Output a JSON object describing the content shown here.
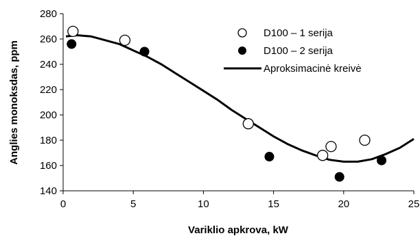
{
  "chart_data": {
    "type": "scatter",
    "title": "",
    "xlabel": "Variklio apkrova, kW",
    "ylabel": "Anglies monoksdas, ppm",
    "xlim": [
      0,
      25
    ],
    "ylim": [
      140,
      280
    ],
    "x_ticks": [
      0,
      5,
      10,
      15,
      20,
      25
    ],
    "y_ticks": [
      140,
      160,
      180,
      200,
      220,
      240,
      260,
      280
    ],
    "grid": false,
    "legend_position": "top-right",
    "series": [
      {
        "name": "D100 – 1 serija",
        "marker": "open-circle",
        "color": "#000000",
        "points": [
          {
            "x": 0.7,
            "y": 266
          },
          {
            "x": 4.4,
            "y": 259
          },
          {
            "x": 13.2,
            "y": 193
          },
          {
            "x": 18.5,
            "y": 168
          },
          {
            "x": 19.1,
            "y": 175
          },
          {
            "x": 21.5,
            "y": 180
          }
        ]
      },
      {
        "name": "D100 – 2 serija",
        "marker": "filled-circle",
        "color": "#000000",
        "points": [
          {
            "x": 0.6,
            "y": 256
          },
          {
            "x": 5.8,
            "y": 250
          },
          {
            "x": 14.7,
            "y": 167
          },
          {
            "x": 19.7,
            "y": 151
          },
          {
            "x": 22.7,
            "y": 164
          }
        ]
      },
      {
        "name": "Aproksimacinė kreivė",
        "marker": "line",
        "color": "#000000",
        "points": [
          {
            "x": 0.2,
            "y": 262
          },
          {
            "x": 1,
            "y": 263
          },
          {
            "x": 2,
            "y": 262
          },
          {
            "x": 3,
            "y": 259
          },
          {
            "x": 4,
            "y": 256
          },
          {
            "x": 5,
            "y": 251
          },
          {
            "x": 6,
            "y": 246
          },
          {
            "x": 7,
            "y": 240
          },
          {
            "x": 8,
            "y": 233
          },
          {
            "x": 9,
            "y": 226
          },
          {
            "x": 10,
            "y": 219
          },
          {
            "x": 11,
            "y": 212
          },
          {
            "x": 12,
            "y": 204
          },
          {
            "x": 13,
            "y": 197
          },
          {
            "x": 14,
            "y": 190
          },
          {
            "x": 15,
            "y": 183
          },
          {
            "x": 16,
            "y": 177
          },
          {
            "x": 17,
            "y": 172
          },
          {
            "x": 18,
            "y": 168
          },
          {
            "x": 19,
            "y": 164.5
          },
          {
            "x": 20,
            "y": 163
          },
          {
            "x": 21,
            "y": 163
          },
          {
            "x": 22,
            "y": 165
          },
          {
            "x": 23,
            "y": 169
          },
          {
            "x": 24,
            "y": 174
          },
          {
            "x": 25,
            "y": 181
          }
        ]
      }
    ]
  }
}
